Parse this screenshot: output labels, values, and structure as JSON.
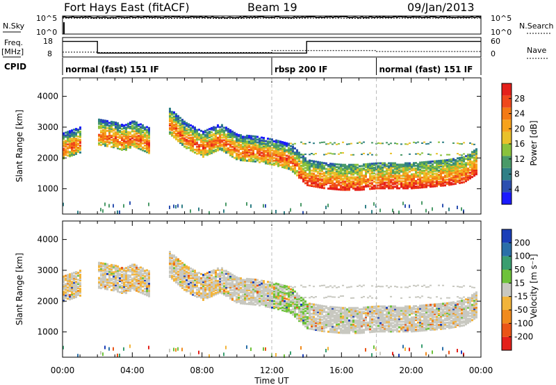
{
  "header": {
    "station": "Fort Hays East (fitACF)",
    "beam": "Beam 19",
    "date": "09/Jan/2013"
  },
  "chart_data": [
    {
      "type": "line",
      "name": "noise-panel",
      "left_label": "N.Sky",
      "right_label": "N.Search",
      "y_ticks_left": [
        "10^5",
        "10^0"
      ],
      "y_ticks_right": [
        "10^5",
        "10^0"
      ],
      "x": [
        0,
        1,
        2,
        3,
        4,
        5,
        6,
        7,
        8,
        9,
        10,
        11,
        12,
        13,
        14,
        15,
        16,
        17,
        18,
        19,
        20,
        21,
        22,
        23,
        24
      ],
      "series": [
        {
          "key": "sky",
          "log_values": [
            4.7,
            4.7,
            4.6,
            4.6,
            4.7,
            4.7,
            4.6,
            4.7,
            4.7,
            4.6,
            4.6,
            4.7,
            4.7,
            4.6,
            4.7,
            4.7,
            4.7,
            4.6,
            4.7,
            4.7,
            4.7,
            4.7,
            4.7,
            4.7,
            4.7
          ]
        },
        {
          "key": "search",
          "log_values": [
            4.4,
            4.4,
            4.3,
            4.3,
            4.4,
            4.4,
            4.3,
            4.4,
            4.4,
            4.3,
            4.3,
            4.4,
            4.4,
            4.3,
            4.4,
            4.4,
            4.4,
            4.3,
            4.4,
            4.4,
            4.4,
            4.4,
            4.4,
            4.4,
            4.4
          ]
        }
      ]
    },
    {
      "type": "line",
      "name": "frequency-panel",
      "left_label_1": "Freq.",
      "left_label_2": "[MHz]",
      "right_label": "Nave",
      "y_ticks_left": [
        "18",
        "8"
      ],
      "y_ticks_right": [
        "60",
        "0"
      ],
      "freq_steps": [
        [
          0,
          16
        ],
        [
          2,
          16
        ],
        [
          2,
          10
        ],
        [
          14,
          10
        ],
        [
          14,
          16
        ],
        [
          24,
          16
        ]
      ],
      "freq_range": [
        8,
        18
      ],
      "nave_steps": [
        [
          0,
          15
        ],
        [
          2,
          15
        ],
        [
          2,
          14
        ],
        [
          12,
          14
        ],
        [
          12,
          20
        ],
        [
          14,
          20
        ],
        [
          14,
          20
        ],
        [
          18,
          20
        ],
        [
          18,
          17
        ],
        [
          24,
          17
        ]
      ],
      "nave_range": [
        0,
        60
      ]
    },
    {
      "type": "table",
      "name": "cpid-bar",
      "label": "CPID",
      "segments": [
        {
          "start": 0,
          "end": 12,
          "label": "normal (fast) 151 IF"
        },
        {
          "start": 12,
          "end": 18,
          "label": "rbsp 200 IF"
        },
        {
          "start": 18,
          "end": 24,
          "label": "normal (fast) 151 IF"
        }
      ]
    },
    {
      "type": "heatmap",
      "name": "power-panel",
      "ylabel": "Slant Range [km]",
      "ylim": [
        180,
        4600
      ],
      "y_ticks": [
        1000,
        2000,
        3000,
        4000
      ],
      "colorbar_label": "Power [dB]",
      "colorbar_ticks": [
        4,
        8,
        12,
        16,
        20,
        24,
        28
      ],
      "colorbar_colors": [
        "#1a1aff",
        "#2b4fb0",
        "#2f7f86",
        "#4a9a68",
        "#8ac23c",
        "#e9c12a",
        "#f7a21c",
        "#f47a14",
        "#f0481c",
        "#e4201a"
      ],
      "band_center_km": [
        [
          0,
          2350
        ],
        [
          0.5,
          2450
        ],
        [
          1,
          2550
        ],
        [
          1.5,
          null
        ],
        [
          2,
          2800
        ],
        [
          3,
          2700
        ],
        [
          3.5,
          2600
        ],
        [
          4,
          2750
        ],
        [
          5,
          2500
        ],
        [
          5.5,
          null
        ],
        [
          6,
          3200
        ],
        [
          7,
          2700
        ],
        [
          8,
          2400
        ],
        [
          9,
          2650
        ],
        [
          10,
          2300
        ],
        [
          11,
          2250
        ],
        [
          12,
          2150
        ],
        [
          13,
          2000
        ],
        [
          14,
          1500
        ],
        [
          15,
          1400
        ],
        [
          16,
          1350
        ],
        [
          17,
          1350
        ],
        [
          18,
          1400
        ],
        [
          19,
          1400
        ],
        [
          20,
          1400
        ],
        [
          21,
          1450
        ],
        [
          22,
          1500
        ],
        [
          23,
          1600
        ],
        [
          23.8,
          1900
        ],
        [
          24,
          null
        ]
      ]
    },
    {
      "type": "heatmap",
      "name": "velocity-panel",
      "ylabel": "Slant Range [km]",
      "ylim": [
        180,
        4600
      ],
      "y_ticks": [
        1000,
        2000,
        3000,
        4000
      ],
      "colorbar_label": "Velocity [m s⁻¹]",
      "colorbar_ticks": [
        200,
        100,
        50,
        15,
        -15,
        -50,
        -100,
        -200
      ],
      "colorbar_colors": [
        "#1a3eb8",
        "#2a6fa8",
        "#3a9e70",
        "#6ec23a",
        "#c8c8c0",
        "#f2b43a",
        "#f08a1c",
        "#ea5416",
        "#e4201a"
      ]
    }
  ],
  "x_axis": {
    "label": "Time UT",
    "ticks": [
      "00:00",
      "04:00",
      "08:00",
      "12:00",
      "16:00",
      "20:00",
      "00:00"
    ],
    "range_hours": [
      0,
      24
    ]
  }
}
